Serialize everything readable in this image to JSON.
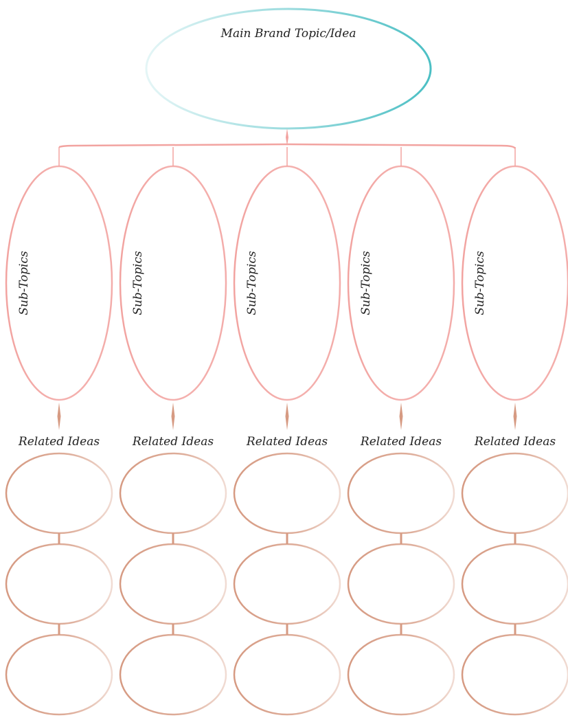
{
  "main_topic": {
    "label": "Main Brand Topic/Idea"
  },
  "sub_topics": [
    {
      "label": "Sub-Topics",
      "related_label": "Related Ideas"
    },
    {
      "label": "Sub-Topics",
      "related_label": "Related Ideas"
    },
    {
      "label": "Sub-Topics",
      "related_label": "Related Ideas"
    },
    {
      "label": "Sub-Topics",
      "related_label": "Related Ideas"
    },
    {
      "label": "Sub-Topics",
      "related_label": "Related Ideas"
    }
  ],
  "related_ideas_per_column": 3,
  "colors": {
    "main_topic_outline": "#4bbfc4",
    "sub_topic_outline": "#f2a3a0",
    "related_idea_outline": "#d69a82",
    "connector": "#f2a3a0",
    "related_connector": "#d69a82",
    "text": "#222222"
  }
}
